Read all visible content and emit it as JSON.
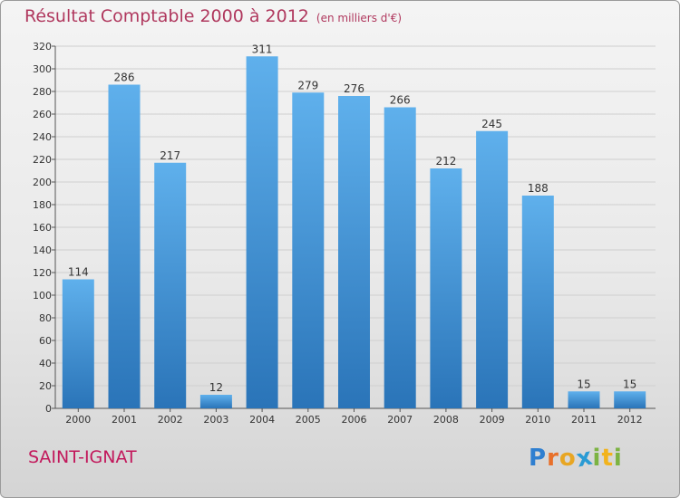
{
  "page": {
    "title": "Résultat Comptable 2000 à 2012",
    "subtitle": "(en milliers d'€)",
    "commune": "SAINT-IGNAT"
  },
  "logo": {
    "text": "Proxiti",
    "letters": [
      {
        "ch": "P",
        "color": "#2f7fd0"
      },
      {
        "ch": "r",
        "color": "#e8702a"
      },
      {
        "ch": "o",
        "color": "#e8a623"
      },
      {
        "ch": "x",
        "color": "#2a9bd4"
      },
      {
        "ch": "i",
        "color": "#7cb342"
      },
      {
        "ch": "t",
        "color": "#f2b31c"
      },
      {
        "ch": "i",
        "color": "#7cb342"
      }
    ]
  },
  "colors": {
    "bar_top": "#5fb0ec",
    "bar_bottom": "#2a74b8",
    "title": "#b0385e",
    "grid": "#cfcfcf"
  },
  "chart_data": {
    "type": "bar",
    "title": "Résultat Comptable 2000 à 2012",
    "subtitle": "(en milliers d'€)",
    "xlabel": "",
    "ylabel": "",
    "categories": [
      "2000",
      "2001",
      "2002",
      "2003",
      "2004",
      "2005",
      "2006",
      "2007",
      "2008",
      "2009",
      "2010",
      "2011",
      "2012"
    ],
    "values": [
      114,
      286,
      217,
      12,
      311,
      279,
      276,
      266,
      212,
      245,
      188,
      15,
      15
    ],
    "data_labels": [
      "114",
      "286",
      "217",
      "12",
      "311",
      "279",
      "276",
      "266",
      "212",
      "245",
      "188",
      "15",
      "15"
    ],
    "ylim": [
      0,
      320
    ],
    "yticks": [
      0,
      20,
      40,
      60,
      80,
      100,
      120,
      140,
      160,
      180,
      200,
      220,
      240,
      260,
      280,
      300,
      320
    ],
    "grid": true,
    "legend": "none"
  }
}
